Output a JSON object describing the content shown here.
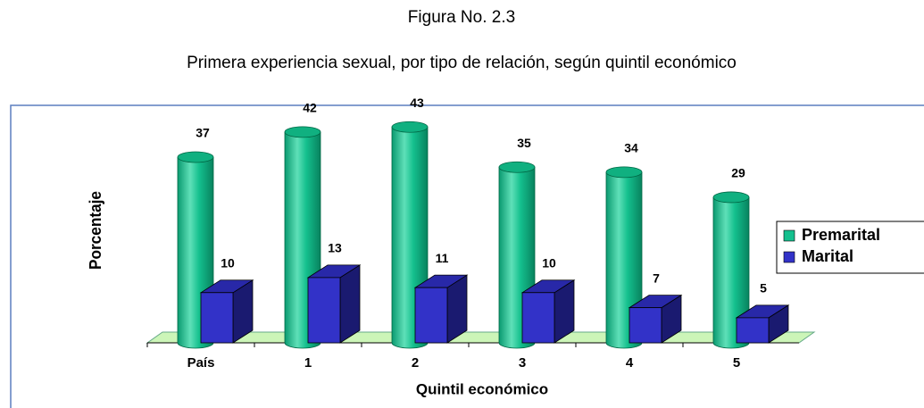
{
  "chart_data": {
    "type": "bar3d",
    "title": "Figura No. 2.3",
    "subtitle": "Primera experiencia sexual, por tipo de relación, según quintil económico",
    "x_label": "Quintil económico",
    "y_label": "Porcentaje",
    "categories": [
      "País",
      "1",
      "2",
      "3",
      "4",
      "5"
    ],
    "series": [
      {
        "name": "Premarital",
        "color": "#14c08e",
        "values": [
          37,
          42,
          43,
          35,
          34,
          29
        ]
      },
      {
        "name": "Marital",
        "color": "#3232c8",
        "values": [
          10,
          13,
          11,
          10,
          7,
          5
        ]
      }
    ],
    "ylim": [
      0,
      45
    ],
    "legend": "right",
    "grid": false
  }
}
